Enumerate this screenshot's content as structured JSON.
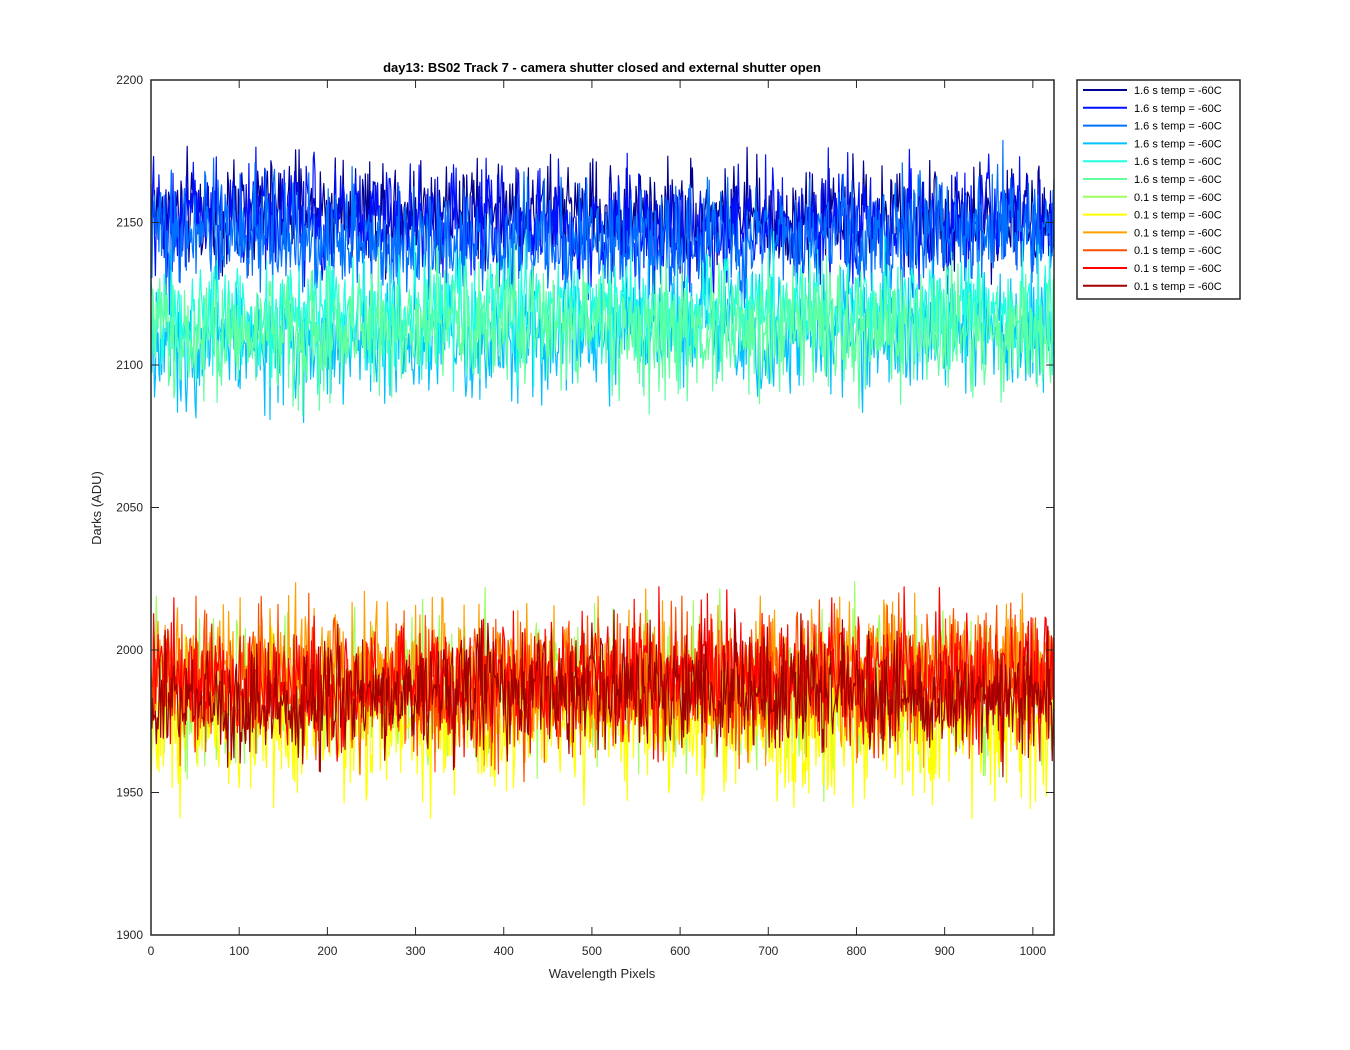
{
  "chart_data": {
    "type": "line",
    "title": "day13: BS02  Track 7 - camera shutter closed and external shutter open",
    "xlabel": "Wavelength Pixels",
    "ylabel": "Darks (ADU)",
    "xlim": [
      0,
      1024
    ],
    "ylim": [
      1900,
      2200
    ],
    "xticks": [
      0,
      100,
      200,
      300,
      400,
      500,
      600,
      700,
      800,
      900,
      1000
    ],
    "yticks": [
      1900,
      1950,
      2000,
      2050,
      2100,
      2150,
      2200
    ],
    "grid": false,
    "legend_position": "outside-top-right",
    "series": [
      {
        "name": "1.6 s temp = -60C",
        "color": "#00008f",
        "mean": 2153,
        "spread": 9
      },
      {
        "name": "1.6 s temp = -60C",
        "color": "#0010ff",
        "mean": 2150,
        "spread": 10
      },
      {
        "name": "1.6 s temp = -60C",
        "color": "#0070ff",
        "mean": 2145,
        "spread": 10
      },
      {
        "name": "1.6 s temp = -60C",
        "color": "#00c0ff",
        "mean": 2110,
        "spread": 11
      },
      {
        "name": "1.6 s temp = -60C",
        "color": "#20ffdf",
        "mean": 2118,
        "spread": 10
      },
      {
        "name": "1.6 s temp = -60C",
        "color": "#60ff9f",
        "mean": 2112,
        "spread": 11
      },
      {
        "name": "0.1 s temp = -60C",
        "color": "#a0ff60",
        "mean": 1985,
        "spread": 13
      },
      {
        "name": "0.1 s temp = -60C",
        "color": "#ffff00",
        "mean": 1975,
        "spread": 13
      },
      {
        "name": "0.1 s temp = -60C",
        "color": "#ffa000",
        "mean": 1992,
        "spread": 12
      },
      {
        "name": "0.1 s temp = -60C",
        "color": "#ff5000",
        "mean": 1988,
        "spread": 12
      },
      {
        "name": "0.1 s temp = -60C",
        "color": "#ff0000",
        "mean": 1990,
        "spread": 11
      },
      {
        "name": "0.1 s temp = -60C",
        "color": "#a00000",
        "mean": 1984,
        "spread": 10
      }
    ]
  }
}
